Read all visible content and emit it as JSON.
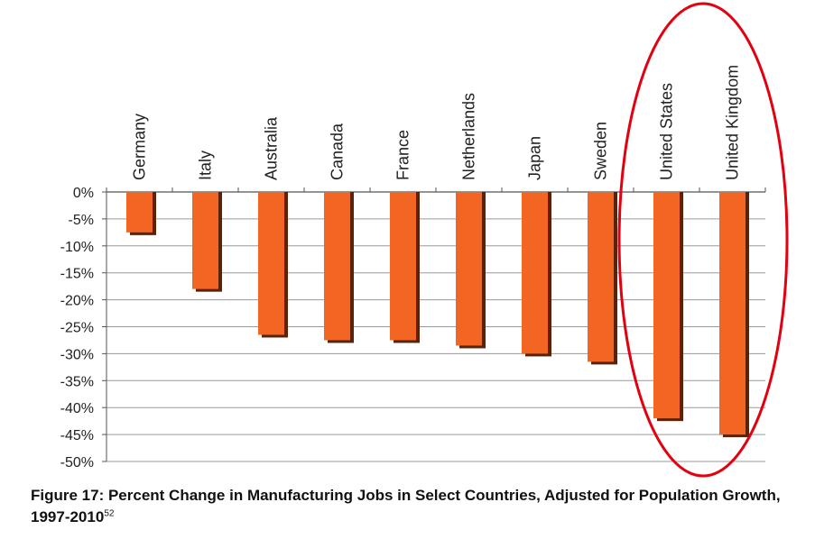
{
  "chart_data": {
    "type": "bar",
    "categories": [
      "Germany",
      "Italy",
      "Australia",
      "Canada",
      "France",
      "Netherlands",
      "Japan",
      "Sweden",
      "United States",
      "United Kingdom"
    ],
    "values": [
      -7.5,
      -18,
      -26.5,
      -27.5,
      -27.5,
      -28.5,
      -30,
      -31.5,
      -42,
      -45
    ],
    "ylim": [
      -50,
      0
    ],
    "yticks": [
      "0%",
      "-5%",
      "-10%",
      "-15%",
      "-20%",
      "-25%",
      "-30%",
      "-35%",
      "-40%",
      "-45%",
      "-50%"
    ],
    "grid": true,
    "bar_color": "#f26522",
    "bar_shadow_color": "#5a2208",
    "highlight_color": "#e3000f",
    "highlighted_categories": [
      "United States",
      "United Kingdom"
    ]
  },
  "caption": {
    "text": "Figure 17: Percent Change in Manufacturing Jobs in Select Countries, Adjusted for Population Growth, 1997-2010",
    "superscript": "52"
  }
}
